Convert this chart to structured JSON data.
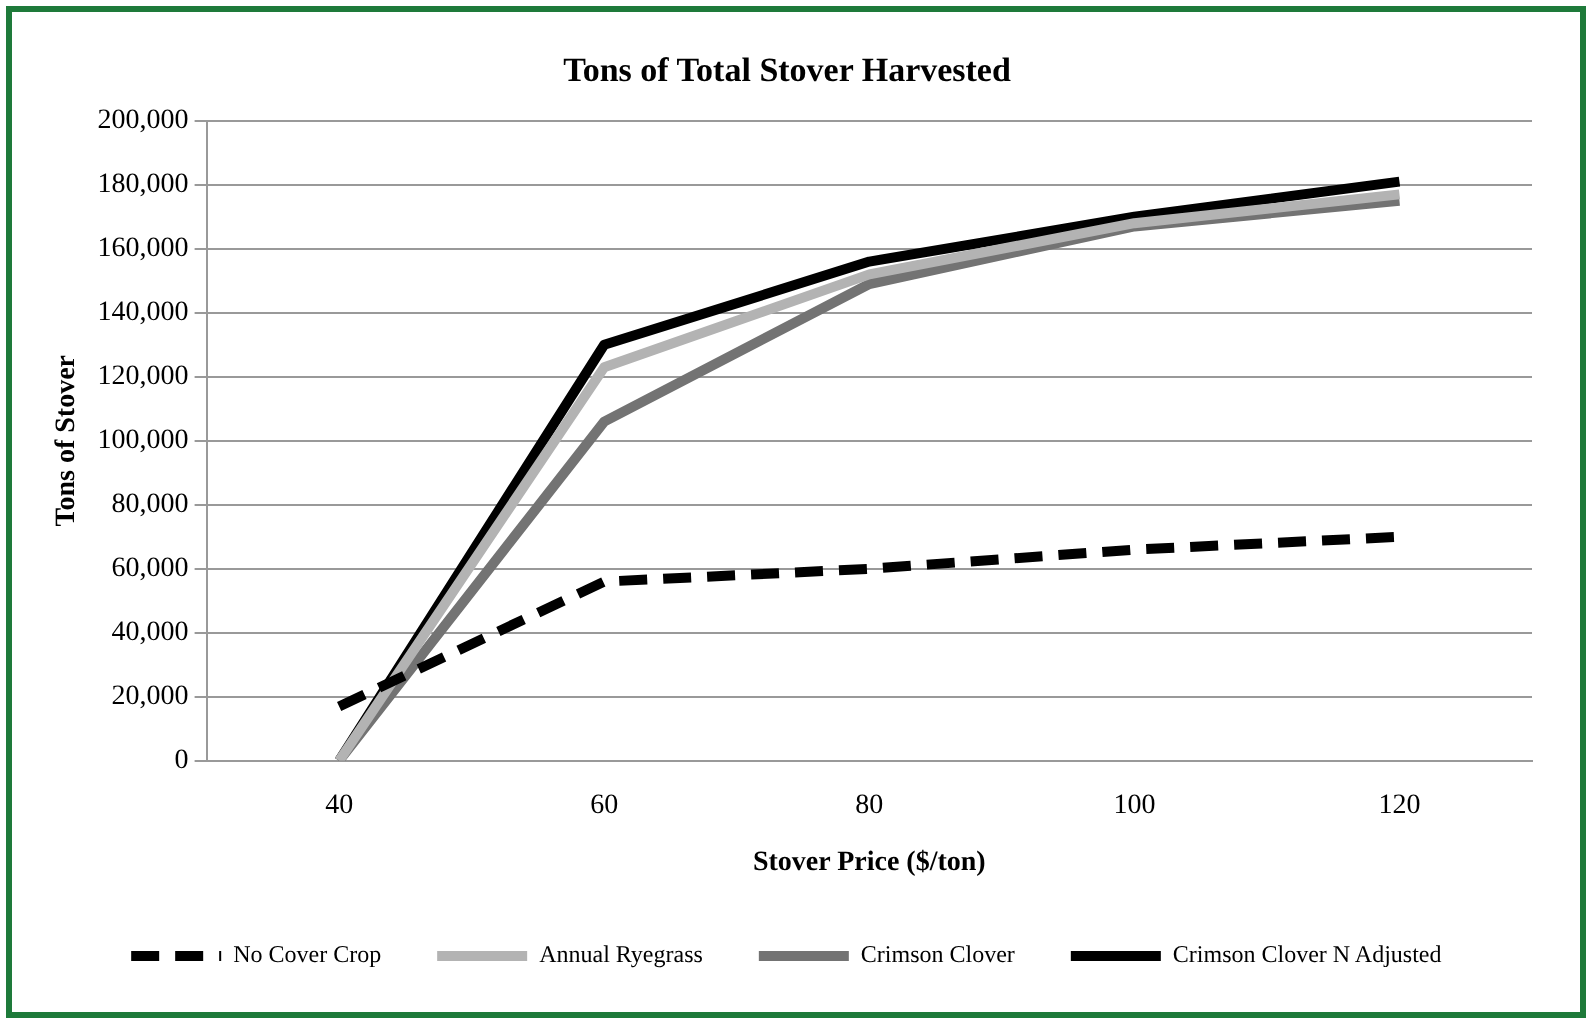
{
  "chart_data": {
    "type": "line",
    "title": "Tons of Total Stover Harvested",
    "xlabel": "Stover Price ($/ton)",
    "ylabel": "Tons of Stover",
    "categories": [
      "40",
      "60",
      "80",
      "100",
      "120"
    ],
    "series": [
      {
        "name": "No Cover Crop",
        "color": "#000000",
        "line_style": "dashed",
        "values": [
          17000,
          56000,
          60000,
          66000,
          70000
        ]
      },
      {
        "name": "Annual Ryegrass",
        "color": "#b3b3b3",
        "values": [
          0,
          123000,
          152000,
          168000,
          177000
        ]
      },
      {
        "name": "Crimson Clover",
        "color": "#737373",
        "values": [
          0,
          106000,
          149000,
          167000,
          175000
        ]
      },
      {
        "name": "Crimson Clover N Adjusted",
        "color": "#000000",
        "values": [
          0,
          130000,
          156000,
          170000,
          181000
        ]
      }
    ],
    "ylim": [
      0,
      200000
    ],
    "yticks": [
      0,
      {
        "value": 20000,
        "label": "20,000"
      },
      {
        "value": 40000,
        "label": "40,000"
      },
      {
        "value": 60000,
        "label": "60,000"
      },
      {
        "value": 80000,
        "label": "80,000"
      },
      {
        "value": 100000,
        "label": "100,000"
      },
      {
        "value": 120000,
        "label": "120,000"
      },
      {
        "value": 140000,
        "label": "140,000"
      },
      {
        "value": 160000,
        "label": "160,000"
      },
      {
        "value": 180000,
        "label": "180,000"
      },
      {
        "value": 200000,
        "label": "200,000"
      }
    ],
    "grid": "y",
    "legend": "bottom",
    "marker": "none",
    "line_style": "solid"
  }
}
